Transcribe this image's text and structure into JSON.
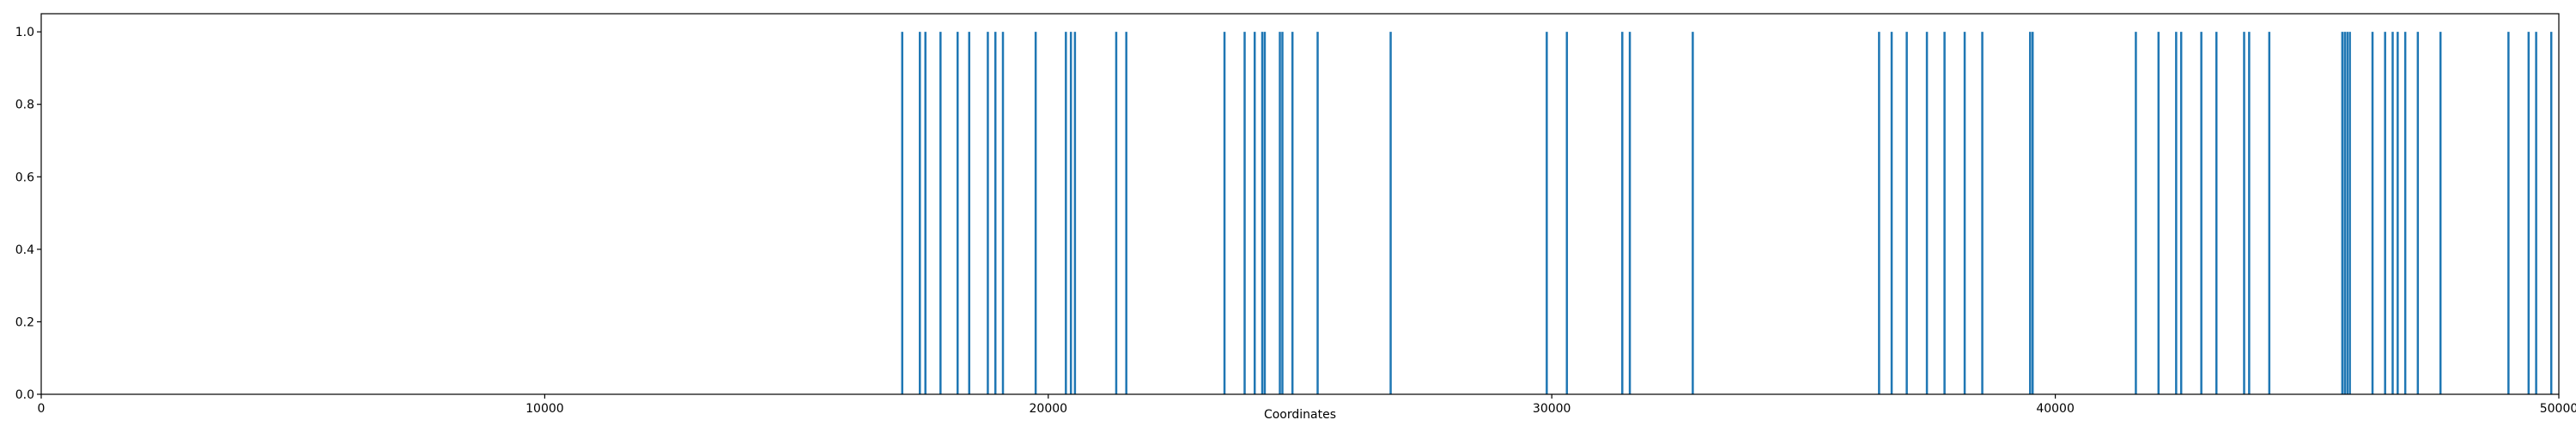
{
  "chart_data": {
    "type": "bar",
    "title": "",
    "xlabel": "Coordinates",
    "ylabel": "",
    "xlim": [
      0,
      50000
    ],
    "ylim": [
      0,
      1.05
    ],
    "xticks": [
      0,
      10000,
      20000,
      30000,
      40000,
      50000
    ],
    "xtick_labels": [
      "0",
      "10000",
      "20000",
      "30000",
      "40000",
      "50000"
    ],
    "yticks": [
      0.0,
      0.2,
      0.4,
      0.6,
      0.8,
      1.0
    ],
    "ytick_labels": [
      "0.0",
      "0.2",
      "0.4",
      "0.6",
      "0.8",
      "1.0"
    ],
    "grid": false,
    "legend": "none",
    "series": [
      {
        "color": "#1f77b4",
        "x": [
          17100,
          17450,
          17560,
          17860,
          18200,
          18430,
          18800,
          18950,
          19100,
          19750,
          20350,
          20450,
          20530,
          21350,
          21550,
          23500,
          23900,
          24100,
          24250,
          24300,
          24600,
          24650,
          24850,
          25350,
          26800,
          29900,
          30300,
          31400,
          31550,
          32800,
          36500,
          36750,
          37050,
          37450,
          37800,
          38200,
          38550,
          39500,
          39550,
          41600,
          42050,
          42400,
          42500,
          42900,
          43200,
          43750,
          43850,
          44250,
          45700,
          45750,
          45800,
          45850,
          46300,
          46550,
          46700,
          46800,
          46950,
          47200,
          47650,
          49000,
          49400,
          49550,
          49850
        ],
        "y": [
          1,
          1,
          1,
          1,
          1,
          1,
          1,
          1,
          1,
          1,
          1,
          1,
          1,
          1,
          1,
          1,
          1,
          1,
          1,
          1,
          1,
          1,
          1,
          1,
          1,
          1,
          1,
          1,
          1,
          1,
          1,
          1,
          1,
          1,
          1,
          1,
          1,
          1,
          1,
          1,
          1,
          1,
          1,
          1,
          1,
          1,
          1,
          1,
          1,
          1,
          1,
          1,
          1,
          1,
          1,
          1,
          1,
          1,
          1,
          1,
          1,
          1,
          1
        ]
      }
    ]
  }
}
